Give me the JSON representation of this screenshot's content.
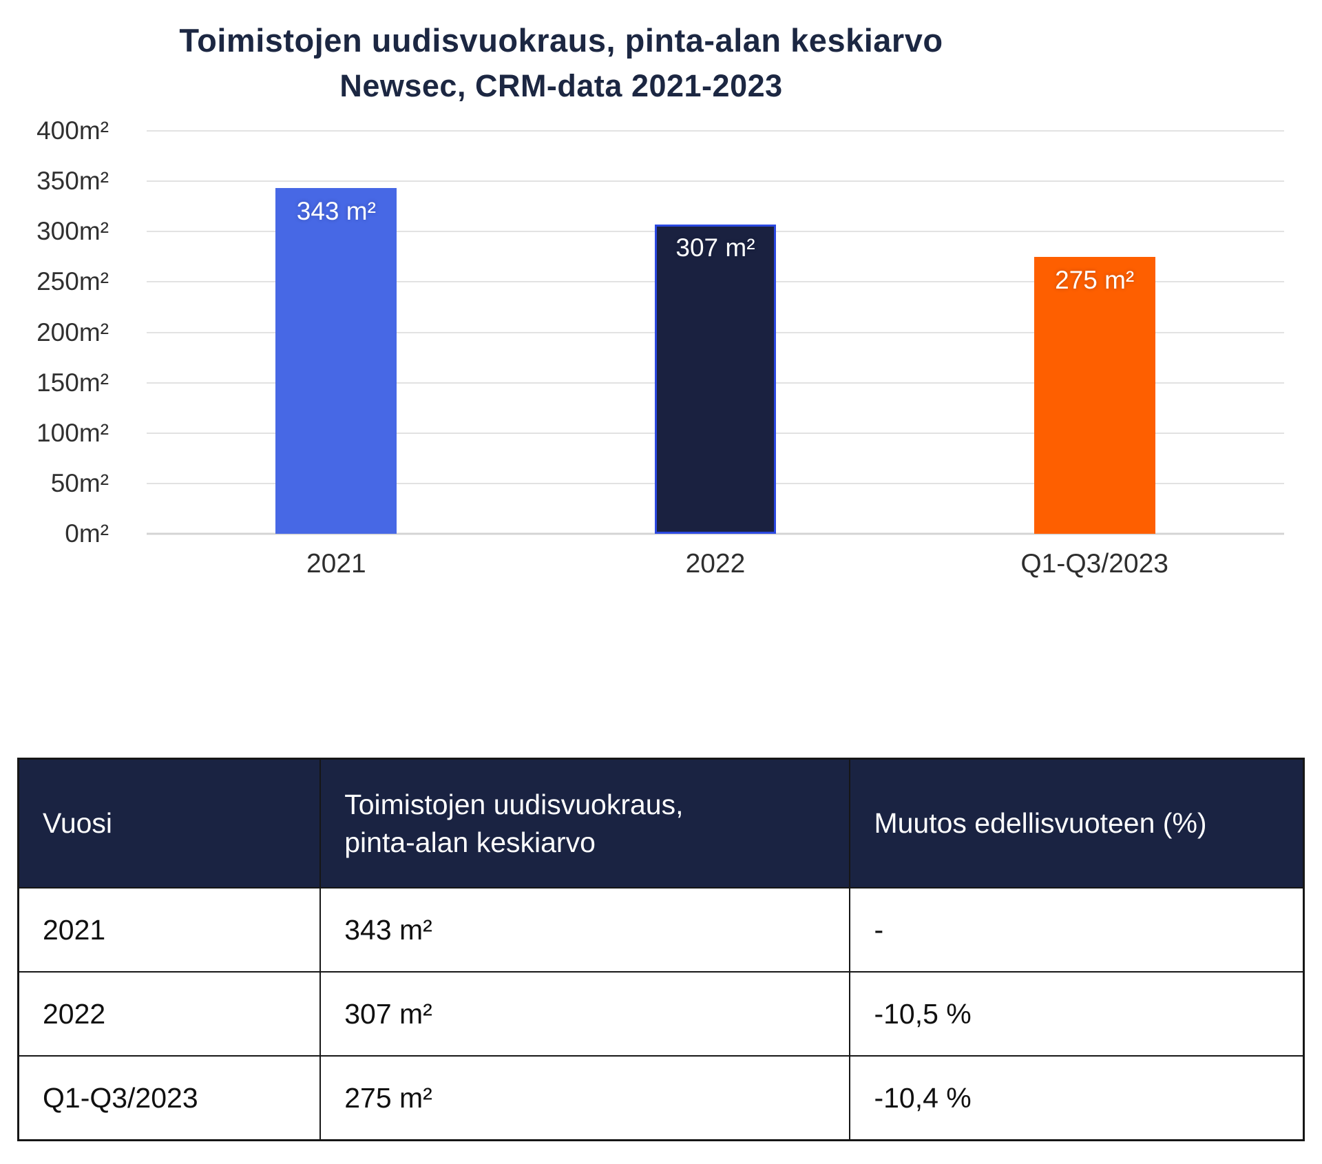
{
  "title": {
    "line1": "Toimistojen uudisvuokraus, pinta-alan keskiarvo",
    "line2": "Newsec, CRM-data 2021-2023"
  },
  "chart_data": {
    "type": "bar",
    "title": "Toimistojen uudisvuokraus, pinta-alan keskiarvo — Newsec, CRM-data 2021-2023",
    "categories": [
      "2021",
      "2022",
      "Q1-Q3/2023"
    ],
    "values": [
      343,
      307,
      275
    ],
    "value_labels": [
      "343 m²",
      "307 m²",
      "275 m²"
    ],
    "bar_colors": [
      "#4768e5",
      "#1a2140",
      "#fe5f00"
    ],
    "bar_border_colors": [
      "#4768e5",
      "#2b48e0",
      "#fe5f00"
    ],
    "xlabel": "",
    "ylabel": "",
    "ylim": [
      0,
      400
    ],
    "yticks": [
      0,
      50,
      100,
      150,
      200,
      250,
      300,
      350,
      400
    ],
    "ytick_labels": [
      "0m²",
      "50m²",
      "100m²",
      "150m²",
      "200m²",
      "250m²",
      "300m²",
      "350m²",
      "400m²"
    ],
    "grid": true,
    "legend": false
  },
  "table": {
    "columns": [
      "Vuosi",
      "Toimistojen uudisvuokraus,\npinta-alan keskiarvo",
      "Muutos edellisvuoteen (%)"
    ],
    "rows": [
      [
        "2021",
        "343 m²",
        "-"
      ],
      [
        "2022",
        "307 m²",
        "-10,5 %"
      ],
      [
        "Q1-Q3/2023",
        "275 m²",
        "-10,4 %"
      ]
    ]
  },
  "colors": {
    "title_text": "#1c2742",
    "bar_blue": "#4768e5",
    "bar_navy": "#1a2140",
    "bar_navy_border": "#2b48e0",
    "bar_orange": "#fe5f00",
    "gridline": "#e2e2e2",
    "table_header_bg": "#1a2342",
    "table_border": "#161616",
    "bar_value_text": "#ffffff"
  }
}
